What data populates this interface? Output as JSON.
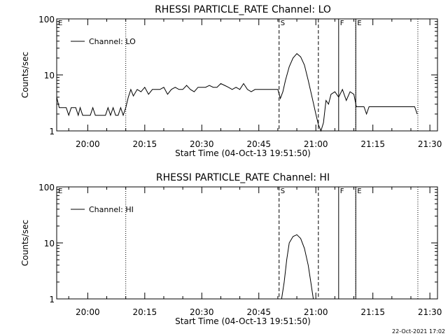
{
  "footer_stamp": "22-Oct-2021 17:02",
  "chart_data": [
    {
      "type": "line",
      "title": "RHESSI PARTICLE_RATE Channel: LO",
      "xlabel": "Start Time (04-Oct-13 19:51:50)",
      "ylabel": "Counts/sec",
      "yscale": "log",
      "xlim": [
        "19:51:50",
        "21:32:00"
      ],
      "ylim": [
        1,
        100
      ],
      "xticks": [
        "20:00",
        "20:15",
        "20:30",
        "20:45",
        "21:00",
        "21:15",
        "21:30"
      ],
      "yticks": [
        "1",
        "10",
        "100"
      ],
      "legend": "top-left",
      "series": [
        {
          "name": "Channel: LO",
          "x": [
            "19:51:50",
            "19:52:30",
            "19:53:00",
            "19:53:40",
            "19:54:20",
            "19:55:00",
            "19:55:40",
            "19:56:10",
            "19:56:50",
            "19:57:30",
            "19:58:00",
            "19:58:40",
            "19:59:20",
            "20:00:00",
            "20:00:40",
            "20:01:20",
            "20:02:00",
            "20:02:40",
            "20:03:20",
            "20:04:00",
            "20:04:40",
            "20:05:20",
            "20:06:00",
            "20:06:40",
            "20:07:20",
            "20:08:00",
            "20:08:40",
            "20:09:20",
            "20:10:00",
            "20:10:40",
            "20:11:20",
            "20:12:00",
            "20:13:00",
            "20:14:00",
            "20:15:00",
            "20:16:00",
            "20:17:00",
            "20:18:00",
            "20:19:00",
            "20:20:00",
            "20:21:00",
            "20:22:00",
            "20:23:00",
            "20:24:00",
            "20:25:00",
            "20:26:00",
            "20:27:00",
            "20:28:00",
            "20:29:00",
            "20:30:00",
            "20:31:00",
            "20:32:00",
            "20:33:00",
            "20:34:00",
            "20:35:00",
            "20:36:00",
            "20:37:00",
            "20:38:00",
            "20:39:00",
            "20:40:00",
            "20:41:00",
            "20:42:00",
            "20:43:00",
            "20:44:00",
            "20:45:00",
            "20:46:00",
            "20:47:00",
            "20:48:00",
            "20:49:00",
            "20:50:00",
            "20:50:40",
            "20:51:20",
            "20:52:00",
            "20:53:00",
            "20:54:00",
            "20:55:00",
            "20:56:00",
            "20:57:00",
            "20:58:00",
            "20:59:00",
            "21:00:00",
            "21:00:40",
            "21:01:20",
            "21:02:00",
            "21:02:40",
            "21:03:20",
            "21:04:00",
            "21:05:00",
            "21:06:00",
            "21:07:00",
            "21:08:00",
            "21:09:00",
            "21:10:00",
            "21:10:40",
            "21:11:20",
            "21:12:00",
            "21:12:40",
            "21:13:20",
            "21:14:00",
            "21:15:00",
            "21:16:00",
            "21:17:00",
            "21:18:00",
            "21:19:00",
            "21:20:00",
            "21:21:00",
            "21:22:00",
            "21:23:00",
            "21:24:00",
            "21:25:00",
            "21:26:00",
            "21:26:40"
          ],
          "y": [
            4.0,
            2.6,
            2.6,
            2.6,
            2.6,
            1.9,
            2.6,
            2.6,
            2.6,
            1.9,
            2.6,
            1.9,
            1.9,
            1.9,
            1.9,
            2.6,
            1.9,
            1.9,
            1.9,
            1.9,
            1.9,
            2.6,
            1.9,
            2.6,
            1.9,
            1.9,
            2.6,
            1.9,
            2.6,
            4.0,
            5.5,
            4.2,
            5.5,
            5.0,
            6.0,
            4.5,
            5.5,
            5.5,
            5.5,
            6.0,
            4.5,
            5.5,
            6.0,
            5.5,
            5.5,
            6.5,
            5.5,
            5.0,
            6.0,
            6.0,
            6.0,
            6.5,
            6.0,
            6.0,
            7.0,
            6.5,
            6.0,
            5.5,
            6.0,
            5.5,
            7.0,
            5.5,
            5.0,
            5.5,
            5.5,
            5.5,
            5.5,
            5.5,
            5.5,
            5.5,
            3.8,
            5.0,
            8.0,
            14.0,
            20.0,
            24.0,
            21.0,
            15.0,
            8.0,
            4.0,
            2.0,
            1.3,
            1.0,
            1.4,
            3.5,
            3.0,
            4.5,
            5.0,
            4.0,
            5.5,
            3.5,
            5.0,
            4.5,
            2.7,
            2.7,
            2.7,
            2.7,
            2.0,
            2.7,
            2.7,
            2.7,
            2.7,
            2.7,
            2.7,
            2.7,
            2.7,
            2.7,
            2.7,
            2.7,
            2.7,
            2.7,
            2.0
          ]
        }
      ],
      "annotations": [
        {
          "label": "E",
          "x": "19:51:50",
          "style": "dotted"
        },
        {
          "label": "",
          "x": "20:10:00",
          "style": "dotted"
        },
        {
          "label": "S",
          "x": "20:50:20",
          "style": "dashed"
        },
        {
          "label": "",
          "x": "21:00:40",
          "style": "dashed"
        },
        {
          "label": "F",
          "x": "21:06:00",
          "style": "solid"
        },
        {
          "label": "E",
          "x": "21:10:30",
          "style": "dotted"
        },
        {
          "label": "",
          "x": "21:10:30",
          "style": "solid"
        },
        {
          "label": "",
          "x": "21:26:50",
          "style": "dotted"
        }
      ]
    },
    {
      "type": "line",
      "title": "RHESSI PARTICLE_RATE Channel: HI",
      "xlabel": "Start Time (04-Oct-13 19:51:50)",
      "ylabel": "Counts/sec",
      "yscale": "log",
      "xlim": [
        "19:51:50",
        "21:32:00"
      ],
      "ylim": [
        1,
        100
      ],
      "xticks": [
        "20:00",
        "20:15",
        "20:30",
        "20:45",
        "21:00",
        "21:15",
        "21:30"
      ],
      "yticks": [
        "1",
        "10",
        "100"
      ],
      "legend": "top-left",
      "series": [
        {
          "name": "Channel: HI",
          "x": [
            "20:51:00",
            "20:51:40",
            "20:52:20",
            "20:53:00",
            "20:54:00",
            "20:55:00",
            "20:56:00",
            "20:57:00",
            "20:58:00",
            "20:58:40",
            "20:59:20"
          ],
          "y": [
            1.0,
            2.0,
            5.0,
            10.0,
            13.0,
            14.0,
            12.0,
            8.0,
            4.0,
            2.0,
            1.0
          ]
        }
      ],
      "annotations": [
        {
          "label": "E",
          "x": "19:51:50",
          "style": "dotted"
        },
        {
          "label": "",
          "x": "20:10:00",
          "style": "dotted"
        },
        {
          "label": "S",
          "x": "20:50:20",
          "style": "dashed"
        },
        {
          "label": "",
          "x": "21:00:40",
          "style": "dashed"
        },
        {
          "label": "F",
          "x": "21:06:00",
          "style": "solid"
        },
        {
          "label": "E",
          "x": "21:10:30",
          "style": "dotted"
        },
        {
          "label": "",
          "x": "21:10:30",
          "style": "solid"
        },
        {
          "label": "",
          "x": "21:26:50",
          "style": "dotted"
        }
      ]
    }
  ]
}
